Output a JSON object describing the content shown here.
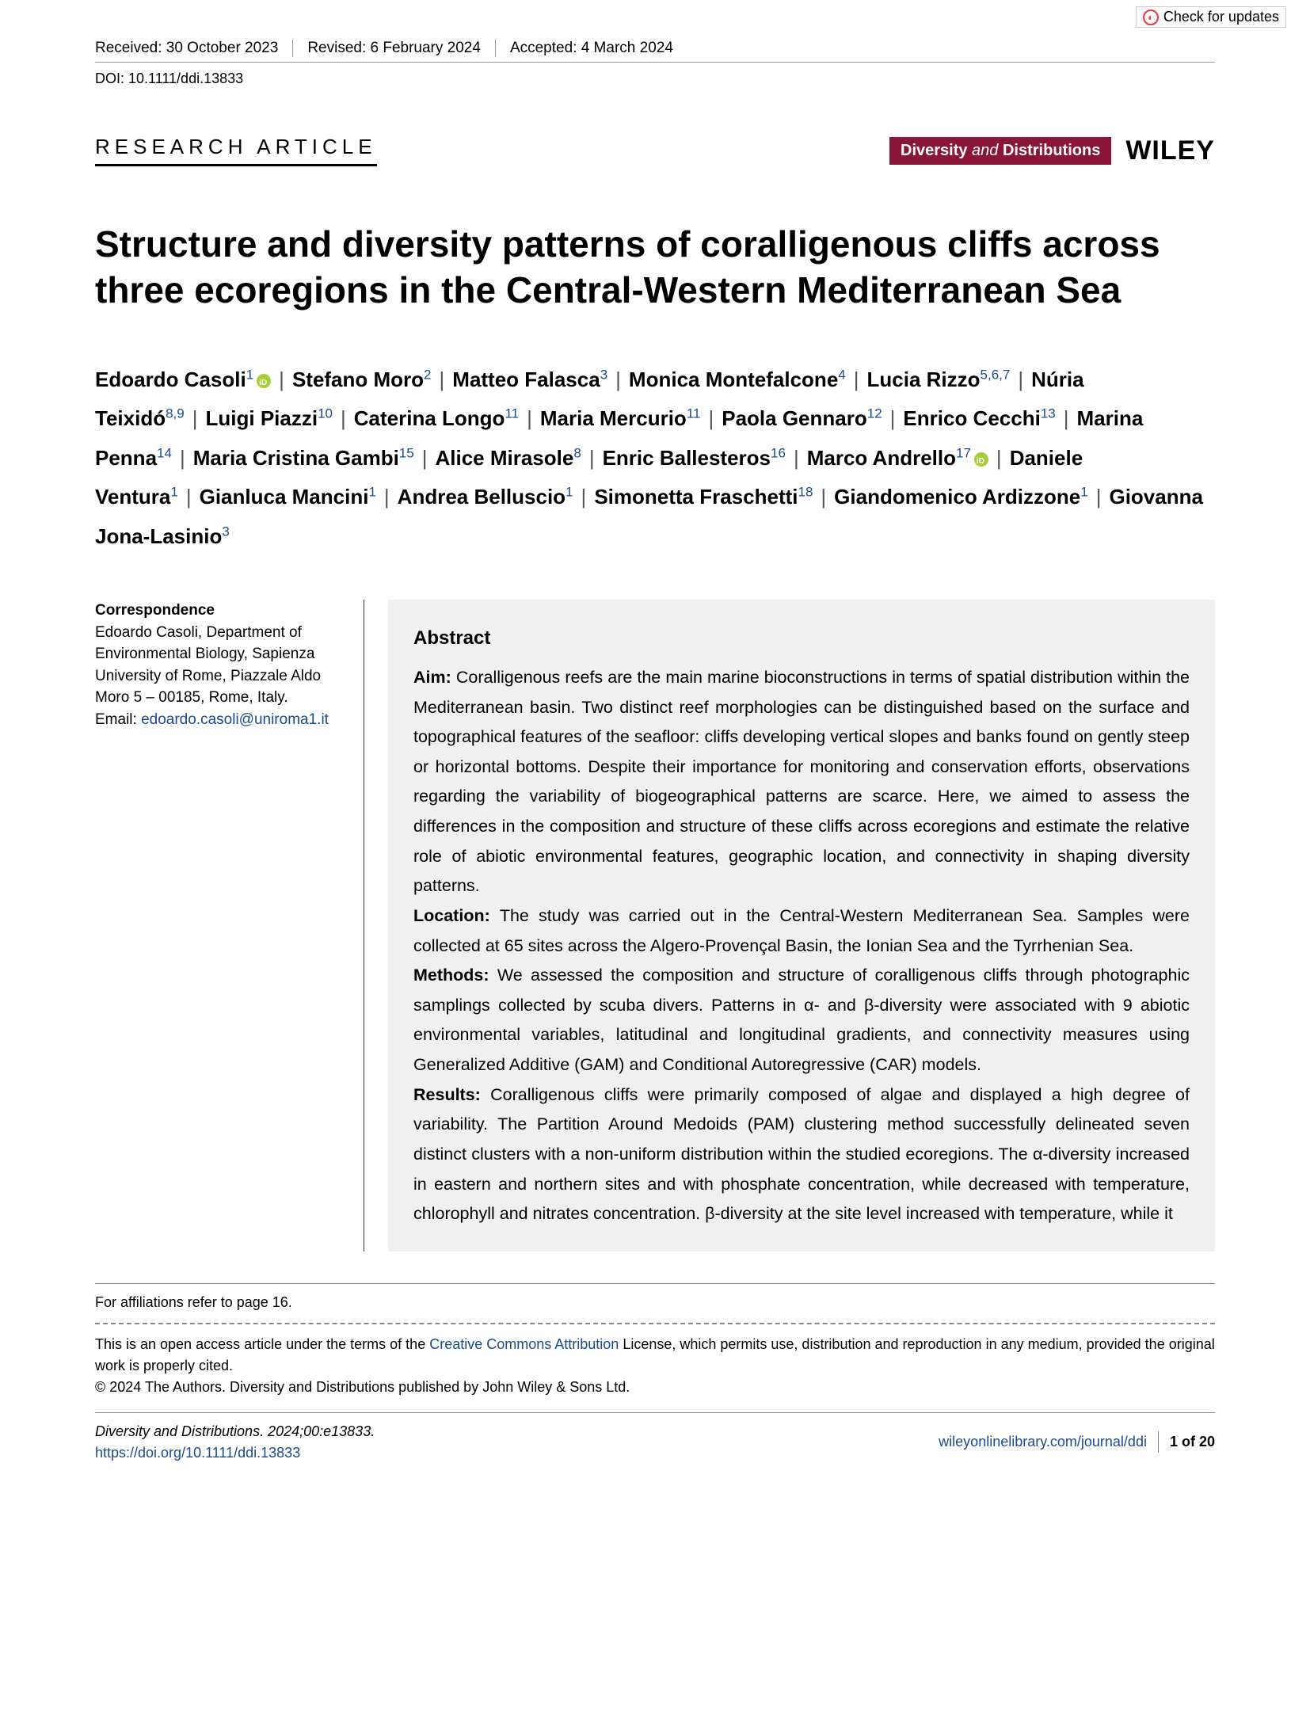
{
  "check_updates": "Check for updates",
  "meta": {
    "received": "Received: 30 October 2023",
    "revised": "Revised: 6 February 2024",
    "accepted": "Accepted: 4 March 2024"
  },
  "doi": "DOI: 10.1111/ddi.13833",
  "article_type": "RESEARCH ARTICLE",
  "journal_badge": {
    "diversity": "Diversity",
    "and": " and ",
    "distributions": "Distributions"
  },
  "publisher": "WILEY",
  "title": "Structure and diversity patterns of coralligenous cliffs across three ecoregions in the Central-Western Mediterranean Sea",
  "authors": [
    {
      "name": "Edoardo Casoli",
      "aff": "1",
      "orcid": true
    },
    {
      "name": "Stefano Moro",
      "aff": "2"
    },
    {
      "name": "Matteo Falasca",
      "aff": "3"
    },
    {
      "name": "Monica Montefalcone",
      "aff": "4"
    },
    {
      "name": "Lucia Rizzo",
      "aff": "5,6,7"
    },
    {
      "name": "Núria Teixidó",
      "aff": "8,9"
    },
    {
      "name": "Luigi Piazzi",
      "aff": "10"
    },
    {
      "name": "Caterina Longo",
      "aff": "11"
    },
    {
      "name": "Maria Mercurio",
      "aff": "11"
    },
    {
      "name": "Paola Gennaro",
      "aff": "12"
    },
    {
      "name": "Enrico Cecchi",
      "aff": "13"
    },
    {
      "name": "Marina Penna",
      "aff": "14"
    },
    {
      "name": "Maria Cristina Gambi",
      "aff": "15"
    },
    {
      "name": "Alice Mirasole",
      "aff": "8"
    },
    {
      "name": "Enric Ballesteros",
      "aff": "16"
    },
    {
      "name": "Marco Andrello",
      "aff": "17",
      "orcid": true
    },
    {
      "name": "Daniele Ventura",
      "aff": "1"
    },
    {
      "name": "Gianluca Mancini",
      "aff": "1"
    },
    {
      "name": "Andrea Belluscio",
      "aff": "1"
    },
    {
      "name": "Simonetta Fraschetti",
      "aff": "18"
    },
    {
      "name": "Giandomenico Ardizzone",
      "aff": "1"
    },
    {
      "name": "Giovanna Jona-Lasinio",
      "aff": "3"
    }
  ],
  "correspondence": {
    "heading": "Correspondence",
    "body": "Edoardo Casoli, Department of Environmental Biology, Sapienza University of Rome, Piazzale Aldo Moro 5 – 00185, Rome, Italy.",
    "email_label": "Email: ",
    "email": "edoardo.casoli@uniroma1.it"
  },
  "abstract": {
    "heading": "Abstract",
    "aim_label": "Aim: ",
    "aim": "Coralligenous reefs are the main marine bioconstructions in terms of spatial distribution within the Mediterranean basin. Two distinct reef morphologies can be distinguished based on the surface and topographical features of the seafloor: cliffs developing vertical slopes and banks found on gently steep or horizontal bottoms. Despite their importance for monitoring and conservation efforts, observations regarding the variability of biogeographical patterns are scarce. Here, we aimed to assess the differences in the composition and structure of these cliffs across ecoregions and estimate the relative role of abiotic environmental features, geographic location, and connectivity in shaping diversity patterns.",
    "location_label": "Location: ",
    "location": "The study was carried out in the Central-Western Mediterranean Sea. Samples were collected at 65 sites across the Algero-Provençal Basin, the Ionian Sea and the Tyrrhenian Sea.",
    "methods_label": "Methods: ",
    "methods": "We assessed the composition and structure of coralligenous cliffs through photographic samplings collected by scuba divers. Patterns in α- and β-diversity were associated with 9 abiotic environmental variables, latitudinal and longitudinal gradients, and connectivity measures using Generalized Additive (GAM) and Conditional Autoregressive (CAR) models.",
    "results_label": "Results: ",
    "results": "Coralligenous cliffs were primarily composed of algae and displayed a high degree of variability. The Partition Around Medoids (PAM) clustering method successfully delineated seven distinct clusters with a non-uniform distribution within the studied ecoregions. The α-diversity increased in eastern and northern sites and with phosphate concentration, while decreased with temperature, chlorophyll and nitrates concentration. β-diversity at the site level increased with temperature, while it"
  },
  "footer": {
    "affil": "For affiliations refer to page 16.",
    "license_pre": "This is an open access article under the terms of the ",
    "license_link": "Creative Commons Attribution",
    "license_post": " License, which permits use, distribution and reproduction in any medium, provided the original work is properly cited.",
    "copyright": "© 2024 The Authors. Diversity and Distributions published by John Wiley & Sons Ltd.",
    "citation": "Diversity and Distributions. 2024;00:e13833.",
    "doi_url": "https://doi.org/10.1111/ddi.13833",
    "journal_url": "wileyonlinelibrary.com/journal/ddi",
    "page": "1 of 20"
  }
}
